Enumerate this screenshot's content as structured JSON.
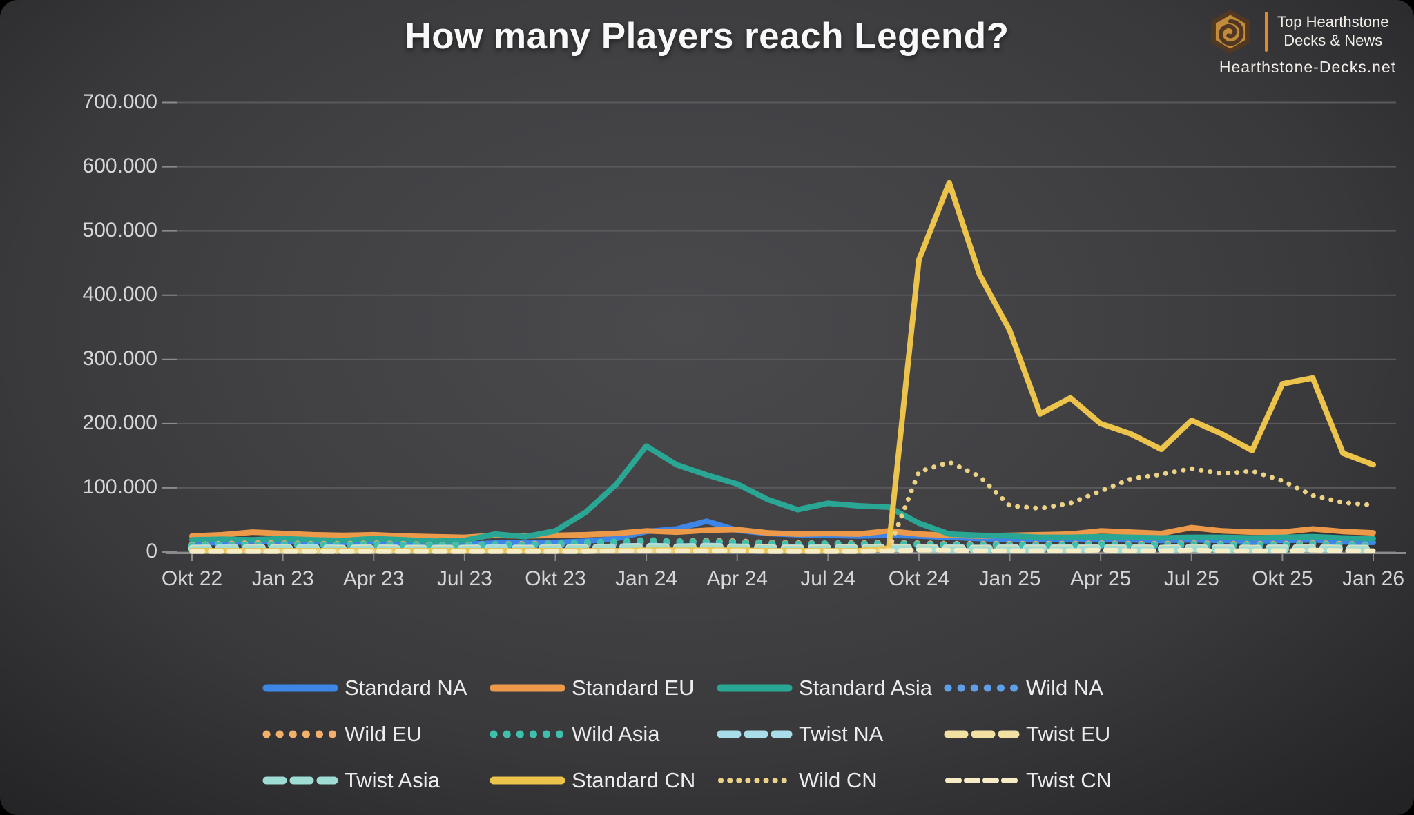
{
  "title": "How many Players reach Legend?",
  "branding": {
    "line1": "Top Hearthstone",
    "line2": "Decks & News",
    "site": "Hearthstone-Decks.net",
    "accent_color": "#e08a2a"
  },
  "colors": {
    "background_center": "#47474a",
    "background_edge": "#232326",
    "gridline": "#59595c",
    "axis_tick": "#8b8b8e",
    "axis_text": "#d6d6d6",
    "legend_text": "#ececec",
    "title_text": "#f8f8f8"
  },
  "chart_data": {
    "type": "line",
    "title": "How many Players reach Legend?",
    "ylabel": "",
    "xlabel": "",
    "ylim": [
      0,
      700000
    ],
    "grid": "horizontal",
    "legend_position": "bottom",
    "units": "values in thousands of players",
    "y_ticks": [
      "700.000",
      "600.000",
      "500.000",
      "400.000",
      "300.000",
      "200.000",
      "100.000",
      "0"
    ],
    "x_labels_shown": [
      "Okt 22",
      "Jan 23",
      "Apr 23",
      "Jul 23",
      "Okt 23",
      "Jan 24",
      "Apr 24",
      "Jul 24",
      "Okt 24",
      "Jan 25",
      "Apr 25",
      "Jul 25",
      "Okt 25",
      "Jan 26"
    ],
    "x": [
      "Okt 22",
      "Nov 22",
      "Dez 22",
      "Jan 23",
      "Feb 23",
      "Mär 23",
      "Apr 23",
      "Mai 23",
      "Jun 23",
      "Jul 23",
      "Aug 23",
      "Sep 23",
      "Okt 23",
      "Nov 23",
      "Dez 23",
      "Jan 24",
      "Feb 24",
      "Mär 24",
      "Apr 24",
      "Mai 24",
      "Jun 24",
      "Jul 24",
      "Aug 24",
      "Sep 24",
      "Okt 24",
      "Nov 24",
      "Dez 24",
      "Jan 25",
      "Feb 25",
      "Mär 25",
      "Apr 25",
      "Mai 25",
      "Jun 25",
      "Jul 25",
      "Aug 25",
      "Sep 25",
      "Okt 25",
      "Nov 25",
      "Dez 25",
      "Jan 26"
    ],
    "series": [
      {
        "name": "Standard NA",
        "color": "#3d85e6",
        "style": "solid",
        "values_thousands": [
          14,
          15,
          16,
          17,
          16,
          15,
          16,
          15,
          13,
          12,
          14,
          14,
          15,
          17,
          21,
          32,
          36,
          48,
          34,
          29,
          27,
          26,
          25,
          26,
          25,
          23,
          21,
          20,
          20,
          20,
          20,
          19,
          18,
          19,
          18,
          17,
          18,
          19,
          16,
          15
        ]
      },
      {
        "name": "Standard EU",
        "color": "#ec9a49",
        "style": "solid",
        "values_thousands": [
          25,
          27,
          31,
          29,
          27,
          26,
          27,
          25,
          24,
          23,
          26,
          25,
          26,
          27,
          29,
          33,
          31,
          34,
          35,
          30,
          28,
          29,
          28,
          33,
          28,
          26,
          25,
          26,
          27,
          28,
          33,
          31,
          29,
          38,
          33,
          31,
          31,
          36,
          32,
          30
        ]
      },
      {
        "name": "Standard Asia",
        "color": "#2aa794",
        "style": "solid",
        "values_thousands": [
          19,
          20,
          19,
          21,
          19,
          18,
          21,
          19,
          17,
          18,
          28,
          24,
          33,
          62,
          105,
          165,
          136,
          120,
          106,
          82,
          66,
          76,
          72,
          70,
          45,
          28,
          26,
          25,
          23,
          23,
          24,
          23,
          22,
          23,
          23,
          22,
          23,
          24,
          22,
          21
        ]
      },
      {
        "name": "Wild NA",
        "color": "#5d9fe8",
        "style": "dotted",
        "values_thousands": [
          9,
          10,
          10,
          11,
          10,
          10,
          11,
          10,
          9,
          9,
          10,
          10,
          11,
          12,
          13,
          15,
          14,
          16,
          14,
          13,
          12,
          12,
          12,
          13,
          12,
          11,
          10,
          10,
          10,
          10,
          11,
          10,
          10,
          11,
          10,
          10,
          10,
          11,
          10,
          9
        ]
      },
      {
        "name": "Wild EU",
        "color": "#f3b06b",
        "style": "dotted",
        "values_thousands": [
          11,
          12,
          13,
          13,
          12,
          12,
          13,
          12,
          11,
          11,
          12,
          12,
          13,
          14,
          15,
          17,
          16,
          17,
          16,
          14,
          13,
          13,
          13,
          14,
          13,
          12,
          12,
          12,
          12,
          12,
          13,
          12,
          12,
          13,
          12,
          12,
          12,
          13,
          12,
          11
        ]
      },
      {
        "name": "Wild Asia",
        "color": "#3fc0ac",
        "style": "dotted",
        "values_thousands": [
          10,
          11,
          11,
          12,
          11,
          11,
          12,
          11,
          10,
          10,
          12,
          11,
          13,
          15,
          16,
          18,
          16,
          16,
          15,
          13,
          12,
          13,
          12,
          13,
          12,
          11,
          11,
          11,
          11,
          11,
          12,
          11,
          11,
          12,
          11,
          11,
          11,
          12,
          11,
          10
        ]
      },
      {
        "name": "Twist NA",
        "color": "#a7dce8",
        "style": "dashed",
        "values_thousands": [
          6,
          7,
          7,
          7,
          7,
          6,
          7,
          6,
          6,
          6,
          7,
          6,
          7,
          7,
          8,
          9,
          8,
          9,
          8,
          7,
          7,
          7,
          7,
          8,
          7,
          7,
          6,
          7,
          7,
          7,
          7,
          7,
          6,
          7,
          7,
          6,
          7,
          7,
          6,
          6
        ]
      },
      {
        "name": "Twist EU",
        "color": "#f2dfa2",
        "style": "dashed",
        "values_thousands": [
          5,
          5,
          6,
          6,
          5,
          5,
          6,
          5,
          5,
          5,
          5,
          5,
          6,
          6,
          6,
          7,
          7,
          7,
          7,
          6,
          5,
          6,
          6,
          6,
          6,
          5,
          5,
          5,
          5,
          5,
          6,
          5,
          5,
          6,
          5,
          5,
          5,
          6,
          5,
          5
        ]
      },
      {
        "name": "Twist Asia",
        "color": "#9fdcd3",
        "style": "dashed",
        "values_thousands": [
          4,
          5,
          5,
          5,
          5,
          4,
          5,
          4,
          4,
          4,
          5,
          4,
          5,
          5,
          6,
          6,
          6,
          6,
          6,
          5,
          4,
          5,
          5,
          5,
          5,
          4,
          4,
          4,
          4,
          4,
          5,
          4,
          4,
          5,
          4,
          4,
          4,
          5,
          4,
          4
        ]
      },
      {
        "name": "Standard CN",
        "color": "#ecc34b",
        "style": "solid",
        "values_thousands": [
          2,
          2,
          2,
          2,
          2,
          2,
          2,
          2,
          2,
          2,
          2,
          2,
          2,
          2,
          2,
          3,
          3,
          3,
          3,
          2,
          2,
          2,
          2,
          6,
          455,
          575,
          432,
          345,
          215,
          240,
          200,
          184,
          160,
          205,
          184,
          158,
          262,
          271,
          154,
          136
        ]
      },
      {
        "name": "Wild CN",
        "color": "#ebd284",
        "style": "dotted-fine",
        "values_thousands": [
          1,
          1,
          1,
          1,
          1,
          1,
          1,
          1,
          1,
          1,
          1,
          1,
          1,
          2,
          2,
          2,
          2,
          2,
          2,
          2,
          2,
          2,
          2,
          4,
          125,
          140,
          118,
          72,
          68,
          76,
          95,
          114,
          121,
          130,
          122,
          126,
          111,
          88,
          77,
          73
        ]
      },
      {
        "name": "Twist CN",
        "color": "#f6edc4",
        "style": "dashed-fine",
        "values_thousands": [
          1,
          1,
          1,
          1,
          1,
          1,
          1,
          1,
          1,
          1,
          1,
          1,
          1,
          1,
          2,
          2,
          2,
          2,
          2,
          1,
          1,
          1,
          1,
          2,
          3,
          3,
          2,
          2,
          2,
          2,
          3,
          2,
          2,
          3,
          2,
          2,
          2,
          3,
          2,
          2
        ]
      }
    ]
  }
}
